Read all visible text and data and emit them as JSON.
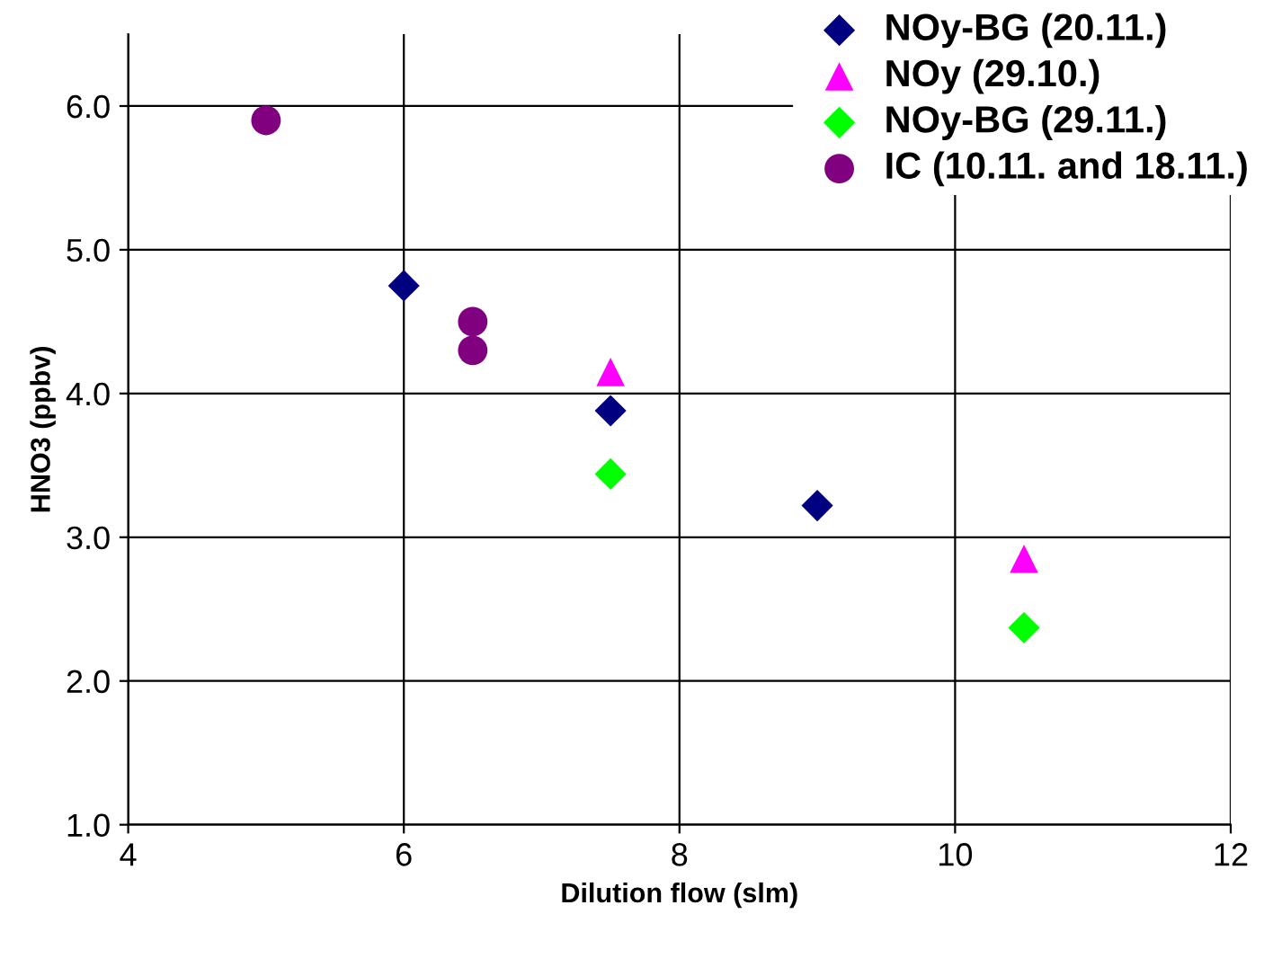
{
  "chart_data": {
    "type": "scatter",
    "xlabel": "Dilution flow (slm)",
    "ylabel": "HNO3 (ppbv)",
    "xlim": [
      4,
      12
    ],
    "xticks": [
      4,
      6,
      8,
      10,
      12
    ],
    "ylim": [
      1,
      6.5
    ],
    "yticks": [
      {
        "value": 1,
        "label": "1.0"
      },
      {
        "value": 2,
        "label": "2.0"
      },
      {
        "value": 3,
        "label": "3.0"
      },
      {
        "value": 4,
        "label": "4.0"
      },
      {
        "value": 5,
        "label": "5.0"
      },
      {
        "value": 6,
        "label": "6.0"
      }
    ],
    "grid": true,
    "legend": "top right",
    "series": [
      {
        "name": "NOy-BG (20.11.)",
        "color": "#000080",
        "marker": "diamond",
        "x": [
          6,
          7.5,
          9
        ],
        "values": [
          4.75,
          3.88,
          3.22
        ]
      },
      {
        "name": "NOy (29.10.)",
        "color": "#ff00ff",
        "marker": "triangle",
        "x": [
          7.5,
          10.5
        ],
        "values": [
          4.15,
          2.85
        ]
      },
      {
        "name": "NOy-BG (29.11.)",
        "color": "#00ff00",
        "marker": "diamond",
        "x": [
          7.5,
          10.5
        ],
        "values": [
          3.44,
          2.37
        ]
      },
      {
        "name": "IC (10.11. and 18.11.)",
        "color": "#800080",
        "marker": "circle",
        "x": [
          5,
          6.5,
          6.5
        ],
        "values": [
          5.9,
          4.5,
          4.3
        ]
      }
    ]
  }
}
